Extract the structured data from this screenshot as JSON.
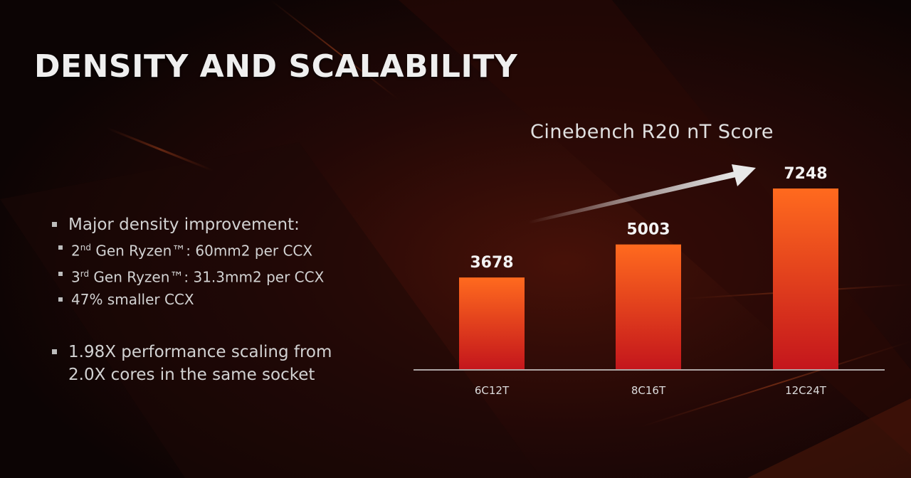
{
  "slide": {
    "title": "DENSITY AND SCALABILITY",
    "bullets": {
      "main1": "Major density improvement:",
      "sub1_ord": "2",
      "sub1_sup": "nd",
      "sub1_rest": " Gen Ryzen™: 60mm2 per CCX",
      "sub2_ord": "3",
      "sub2_sup": "rd",
      "sub2_rest": " Gen Ryzen™: 31.3mm2 per CCX",
      "sub3": "47% smaller CCX",
      "main2_line1": "1.98X performance scaling from",
      "main2_line2": "2.0X cores in the same socket"
    }
  },
  "chart_data": {
    "type": "bar",
    "title": "Cinebench R20 nT Score",
    "categories": [
      "6C12T",
      "8C16T",
      "12C24T"
    ],
    "values": [
      3678,
      5003,
      7248
    ],
    "xlabel": "",
    "ylabel": "",
    "ylim": [
      0,
      7248
    ],
    "grid": false,
    "legend": "none",
    "colors": {
      "bar_top": "#ff6a1e",
      "bar_bottom": "#c4161c",
      "accent_arrow": "#e8e8e8"
    }
  }
}
